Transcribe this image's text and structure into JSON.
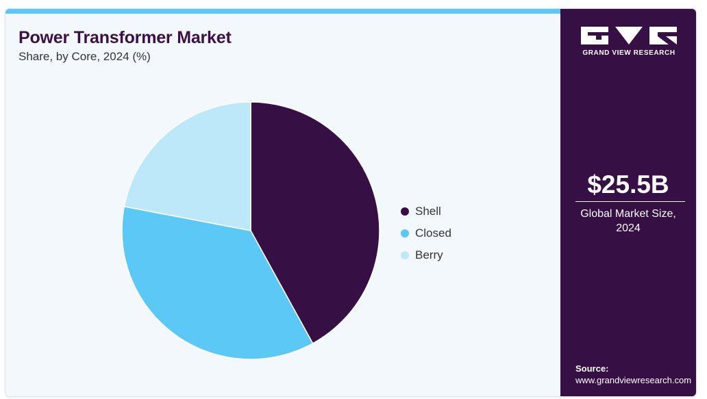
{
  "header": {
    "title": "Power Transformer Market",
    "subtitle": "Share, by Core, 2024 (%)"
  },
  "colors": {
    "accent_bar": "#5bc8f5",
    "title": "#3a1045",
    "side_panel": "#360f44",
    "background": "#f3f8fc"
  },
  "chart_data": {
    "type": "pie",
    "title": "Power Transformer Market",
    "subtitle": "Share, by Core, 2024 (%)",
    "categories": [
      "Shell",
      "Closed",
      "Berry"
    ],
    "values": [
      42,
      36,
      22
    ],
    "colors": [
      "#360f44",
      "#5bc8f5",
      "#bde8f9"
    ],
    "legend_position": "right",
    "start_angle": "12 o'clock",
    "direction": "clockwise"
  },
  "sidebar": {
    "logo_text": "GRAND VIEW RESEARCH",
    "market_value": "$25.5B",
    "market_label": "Global Market Size, 2024",
    "source_label": "Source:",
    "source_url": "www.grandviewresearch.com"
  }
}
